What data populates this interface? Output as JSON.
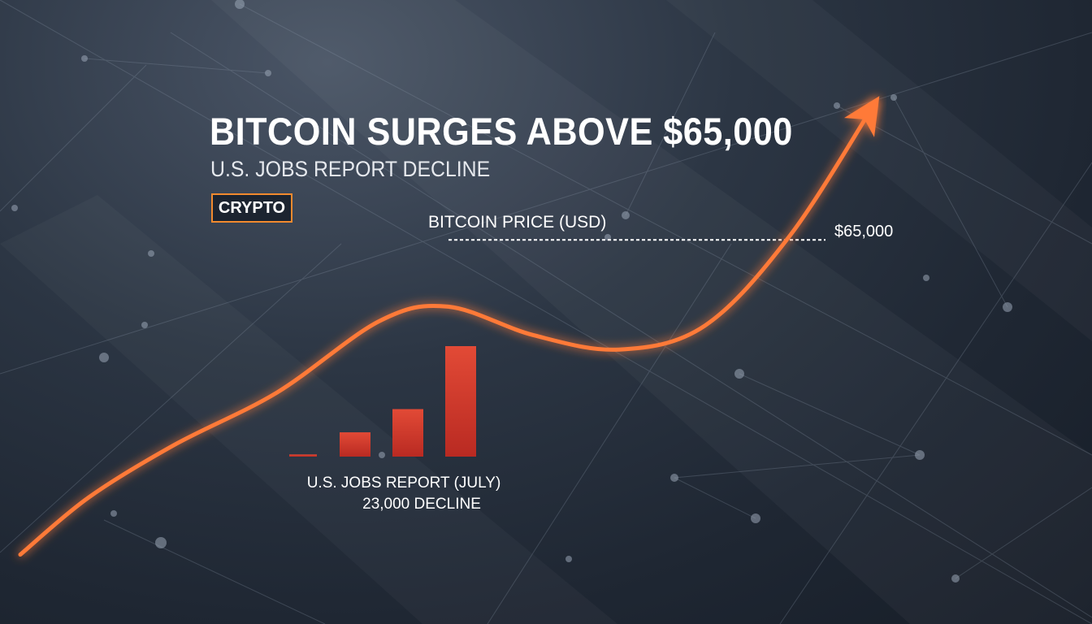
{
  "header": {
    "title": "BITCOIN SURGES ABOVE $65,000",
    "subtitle": "U.S. JOBS REPORT DECLINE",
    "tag": "CRYPTO"
  },
  "colors": {
    "accent": "#f28a2e",
    "price_line": "#ff7a38",
    "bars": "#d83a2c",
    "text": "#ffffff"
  },
  "chart_data": [
    {
      "type": "line",
      "series": [
        {
          "name": "BITCOIN PRICE (USD)",
          "points": [
            {
              "t": 0,
              "v": 0.05
            },
            {
              "t": 0.08,
              "v": 0.17
            },
            {
              "t": 0.18,
              "v": 0.28
            },
            {
              "t": 0.3,
              "v": 0.39
            },
            {
              "t": 0.42,
              "v": 0.54
            },
            {
              "t": 0.5,
              "v": 0.57
            },
            {
              "t": 0.6,
              "v": 0.51
            },
            {
              "t": 0.7,
              "v": 0.48
            },
            {
              "t": 0.8,
              "v": 0.53
            },
            {
              "t": 0.9,
              "v": 0.72
            },
            {
              "t": 1.0,
              "v": 1.0
            }
          ]
        }
      ],
      "reference_line": {
        "label": "$65,000",
        "v": 0.71
      },
      "arrow_at_end": true
    },
    {
      "type": "bar",
      "title": "U.S. JOBS REPORT (JULY)",
      "annotation": "23,000 DECLINE",
      "values": [
        0.02,
        0.22,
        0.43,
        1.0
      ]
    }
  ]
}
